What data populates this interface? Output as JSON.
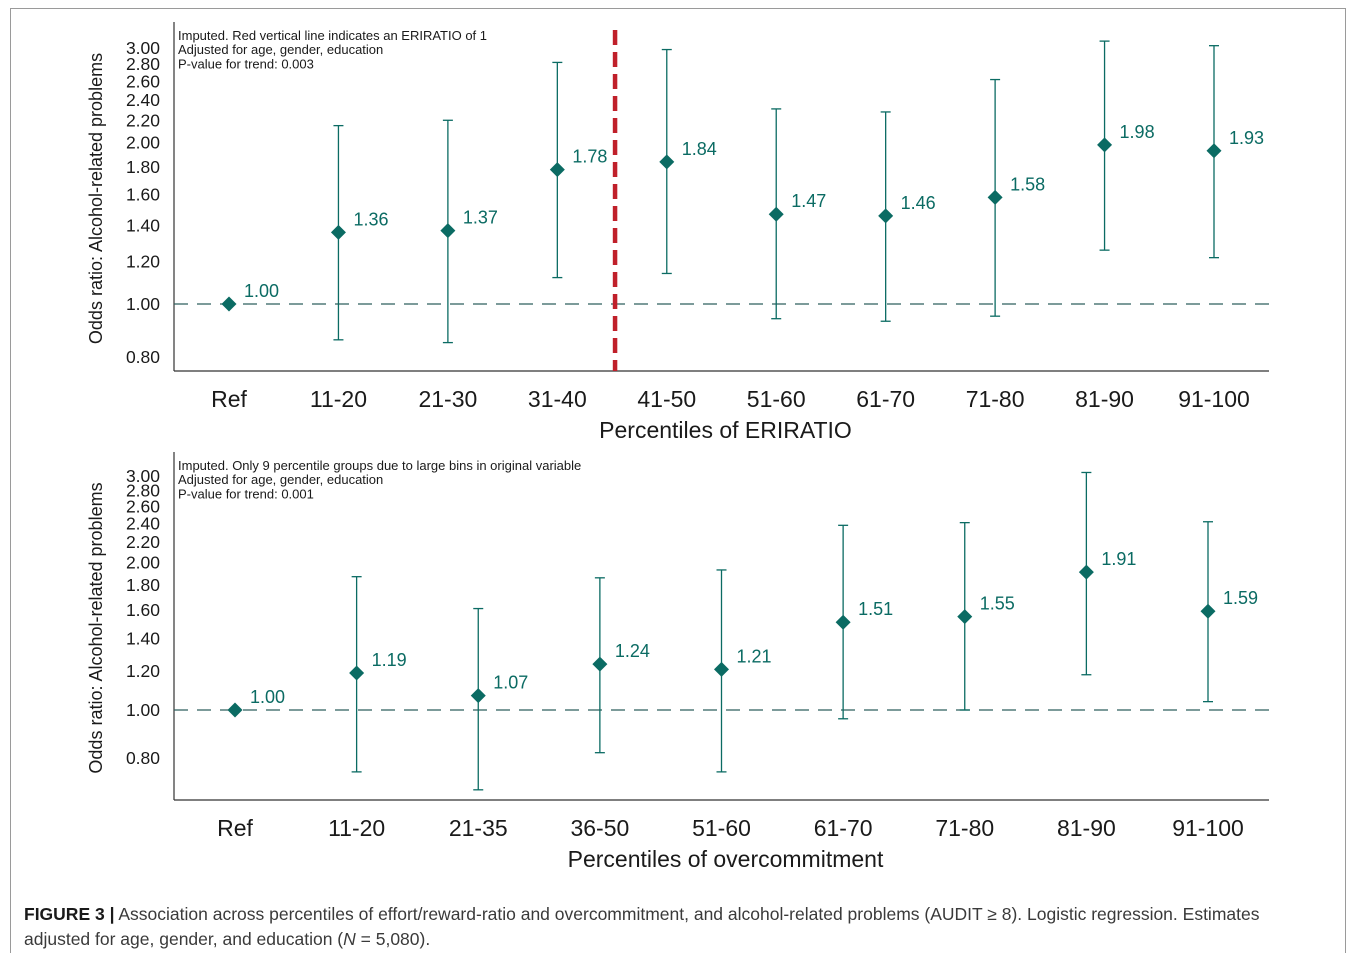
{
  "colors": {
    "marker": "#0b6b63",
    "refline": "#2f5f5d",
    "red_line": "#c0202a",
    "axis": "#333333"
  },
  "chart_data": [
    {
      "type": "scatter",
      "style": "point-estimate with error bars",
      "notes": [
        "Imputed. Red vertical line indicates an ERIRATIO of 1",
        "Adjusted for age, gender, education",
        "P-value for trend: 0.003"
      ],
      "xlabel": "Percentiles of ERIRATIO",
      "ylabel": "Odds ratio: Alcohol-related problems",
      "y_scale": "log",
      "ylim": [
        0.74,
        3.3
      ],
      "y_ticks": [
        "0.80",
        "1.00",
        "1.20",
        "1.40",
        "1.60",
        "1.80",
        "2.00",
        "2.20",
        "2.40",
        "2.60",
        "2.80",
        "3.00"
      ],
      "y_tick_values": [
        0.8,
        1.0,
        1.2,
        1.4,
        1.6,
        1.8,
        2.0,
        2.2,
        2.4,
        2.6,
        2.8,
        3.0
      ],
      "reference_line": 1.0,
      "vertical_marker_between": [
        "31-40",
        "41-50"
      ],
      "categories": [
        "Ref",
        "11-20",
        "21-30",
        "31-40",
        "41-50",
        "51-60",
        "61-70",
        "71-80",
        "81-90",
        "91-100"
      ],
      "values": [
        1.0,
        1.36,
        1.37,
        1.78,
        1.84,
        1.47,
        1.46,
        1.58,
        1.98,
        1.93
      ],
      "labels": [
        "1.00",
        "1.36",
        "1.37",
        "1.78",
        "1.84",
        "1.47",
        "1.46",
        "1.58",
        "1.98",
        "1.93"
      ],
      "ci_lower": [
        null,
        0.86,
        0.85,
        1.12,
        1.14,
        0.94,
        0.93,
        0.95,
        1.26,
        1.22
      ],
      "ci_upper": [
        null,
        2.15,
        2.2,
        2.82,
        2.98,
        2.31,
        2.28,
        2.62,
        3.09,
        3.03
      ],
      "grid": false
    },
    {
      "type": "scatter",
      "style": "point-estimate with error bars",
      "notes": [
        "Imputed. Only 9 percentile groups due to large bins in original variable",
        "Adjusted for age, gender, education",
        "P-value for trend: 0.001"
      ],
      "xlabel": "Percentiles of overcommitment",
      "ylabel": "Odds ratio: Alcohol-related problems",
      "y_scale": "log",
      "ylim": [
        0.7,
        3.3
      ],
      "y_ticks": [
        "0.80",
        "1.00",
        "1.20",
        "1.40",
        "1.60",
        "1.80",
        "2.00",
        "2.20",
        "2.40",
        "2.60",
        "2.80",
        "3.00"
      ],
      "y_tick_values": [
        0.8,
        1.0,
        1.2,
        1.4,
        1.6,
        1.8,
        2.0,
        2.2,
        2.4,
        2.6,
        2.8,
        3.0
      ],
      "reference_line": 1.0,
      "categories": [
        "Ref",
        "11-20",
        "21-35",
        "36-50",
        "51-60",
        "61-70",
        "71-80",
        "81-90",
        "91-100"
      ],
      "values": [
        1.0,
        1.19,
        1.07,
        1.24,
        1.21,
        1.51,
        1.55,
        1.91,
        1.59
      ],
      "labels": [
        "1.00",
        "1.19",
        "1.07",
        "1.24",
        "1.21",
        "1.51",
        "1.55",
        "1.91",
        "1.59"
      ],
      "ci_lower": [
        null,
        0.75,
        0.69,
        0.82,
        0.75,
        0.96,
        1.0,
        1.18,
        1.04
      ],
      "ci_upper": [
        null,
        1.87,
        1.61,
        1.86,
        1.93,
        2.38,
        2.41,
        3.05,
        2.42
      ],
      "grid": false
    }
  ],
  "caption": {
    "label": "FIGURE 3 |",
    "text_part1": " Association across percentiles of effort/reward-ratio and overcommitment, and alcohol-related problems (AUDIT ≥ 8). Logistic regression. Estimates adjusted for age, gender, and education (",
    "n_symbol": "N",
    "text_part2": " = 5,080)."
  }
}
